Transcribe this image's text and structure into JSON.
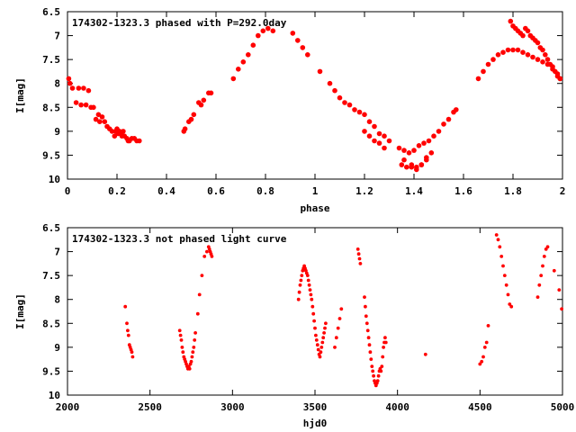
{
  "chart_data": [
    {
      "type": "scatter",
      "title": "174302-1323.3 phased with P=292.0day",
      "xlabel": "phase",
      "ylabel": "I[mag]",
      "xlim": [
        0,
        2
      ],
      "ylim": [
        6.5,
        10
      ],
      "y_inverted": true,
      "grid": false,
      "marker_color": "#ff0000",
      "marker": "filled-circle",
      "xticks": [
        0,
        0.2,
        0.4,
        0.6,
        0.8,
        1,
        1.2,
        1.4,
        1.6,
        1.8,
        2
      ],
      "xtick_labels": [
        "0",
        "0.2",
        "0.4",
        "0.6",
        "0.8",
        "1",
        "1.2",
        "1.4",
        "1.6",
        "1.8",
        "2"
      ],
      "yticks": [
        6.5,
        7,
        7.5,
        8,
        8.5,
        9,
        9.5,
        10
      ],
      "ytick_labels": [
        "6.5",
        "7",
        "7.5",
        "8",
        "8.5",
        "9",
        "9.5",
        "10"
      ],
      "series": [
        {
          "x": [
            0.005,
            0.01,
            0.02,
            0.035,
            0.045,
            0.055,
            0.065,
            0.075,
            0.085,
            0.095,
            0.105,
            0.115,
            0.125,
            0.13,
            0.14,
            0.15,
            0.16,
            0.17,
            0.18,
            0.19,
            0.195,
            0.2,
            0.205,
            0.21,
            0.215,
            0.22,
            0.225,
            0.23,
            0.24,
            0.245,
            0.25,
            0.26,
            0.27,
            0.28,
            0.29,
            0.47,
            0.475,
            0.49,
            0.5,
            0.51,
            0.53,
            0.54,
            0.55,
            0.57,
            0.58,
            0.67,
            0.69,
            0.71,
            0.73,
            0.75,
            0.77,
            0.79,
            0.81,
            0.83,
            0.91,
            0.93,
            0.95,
            0.97,
            1.02,
            1.06,
            1.08,
            1.1,
            1.12,
            1.14,
            1.16,
            1.18,
            1.2,
            1.22,
            1.24,
            1.26,
            1.28,
            1.3,
            1.34,
            1.36,
            1.38,
            1.4,
            1.42,
            1.44,
            1.46,
            1.48,
            1.5,
            1.52,
            1.54,
            1.56,
            1.57,
            1.66,
            1.68,
            1.7,
            1.72,
            1.74,
            1.76,
            1.78,
            1.8,
            1.82,
            1.84,
            1.86,
            1.88,
            1.9,
            1.92,
            1.94,
            1.96,
            1.98,
            1.99,
            1.2,
            1.22,
            1.24,
            1.26,
            1.28,
            1.35,
            1.37,
            1.39,
            1.41,
            1.43,
            1.45,
            1.47,
            1.79,
            1.8,
            1.81,
            1.82,
            1.83,
            1.84,
            1.85,
            1.86,
            1.87,
            1.88,
            1.89,
            1.9,
            1.91,
            1.92,
            1.93,
            1.94,
            1.95,
            1.96,
            1.97,
            1.98,
            1.99,
            1.36,
            1.39,
            1.41,
            1.43,
            1.45
          ],
          "y": [
            7.9,
            8.0,
            8.1,
            8.4,
            8.1,
            8.45,
            8.1,
            8.45,
            8.15,
            8.5,
            8.5,
            8.75,
            8.65,
            8.8,
            8.7,
            8.8,
            8.9,
            8.95,
            9.0,
            9.1,
            9.0,
            8.95,
            9.05,
            9.0,
            9.05,
            9.1,
            9.0,
            9.1,
            9.15,
            9.2,
            9.2,
            9.15,
            9.15,
            9.2,
            9.2,
            9.0,
            8.95,
            8.8,
            8.75,
            8.65,
            8.4,
            8.45,
            8.35,
            8.2,
            8.2,
            7.9,
            7.7,
            7.55,
            7.4,
            7.2,
            7.0,
            6.9,
            6.85,
            6.9,
            6.95,
            7.1,
            7.25,
            7.4,
            7.75,
            8.0,
            8.15,
            8.3,
            8.4,
            8.45,
            8.55,
            8.6,
            8.65,
            8.8,
            8.9,
            9.05,
            9.1,
            9.2,
            9.35,
            9.4,
            9.45,
            9.4,
            9.3,
            9.25,
            9.2,
            9.1,
            9.0,
            8.85,
            8.75,
            8.6,
            8.55,
            7.9,
            7.75,
            7.6,
            7.5,
            7.4,
            7.35,
            7.3,
            7.3,
            7.3,
            7.35,
            7.4,
            7.45,
            7.5,
            7.55,
            7.6,
            7.65,
            7.8,
            7.9,
            9.0,
            9.1,
            9.2,
            9.25,
            9.35,
            9.7,
            9.75,
            9.75,
            9.8,
            9.7,
            9.55,
            9.45,
            6.7,
            6.8,
            6.85,
            6.9,
            6.95,
            7.0,
            6.85,
            6.9,
            7.0,
            7.05,
            7.1,
            7.15,
            7.25,
            7.3,
            7.4,
            7.5,
            7.6,
            7.7,
            7.75,
            7.85,
            7.9,
            9.6,
            9.7,
            9.75,
            9.7,
            9.6
          ]
        }
      ]
    },
    {
      "type": "scatter",
      "title": "174302-1323.3 not phased light curve",
      "xlabel": "hjd0",
      "ylabel": "I[mag]",
      "xlim": [
        2000,
        5000
      ],
      "ylim": [
        6.5,
        10
      ],
      "y_inverted": true,
      "grid": false,
      "marker_color": "#ff0000",
      "marker": "filled-circle",
      "xticks": [
        2000,
        2500,
        3000,
        3500,
        4000,
        4500,
        5000
      ],
      "xtick_labels": [
        "2000",
        "2500",
        "3000",
        "3500",
        "4000",
        "4500",
        "5000"
      ],
      "yticks": [
        6.5,
        7,
        7.5,
        8,
        8.5,
        9,
        9.5,
        10
      ],
      "ytick_labels": [
        "6.5",
        "7",
        "7.5",
        "8",
        "8.5",
        "9",
        "9.5",
        "10"
      ],
      "series": [
        {
          "x": [
            2350,
            2360,
            2365,
            2370,
            2375,
            2380,
            2385,
            2390,
            2395,
            2680,
            2685,
            2690,
            2695,
            2700,
            2705,
            2710,
            2715,
            2720,
            2725,
            2730,
            2735,
            2740,
            2745,
            2750,
            2755,
            2760,
            2765,
            2770,
            2775,
            2790,
            2800,
            2815,
            2830,
            2845,
            2855,
            2860,
            2865,
            2870,
            2875,
            3400,
            3405,
            3410,
            3415,
            3420,
            3425,
            3430,
            3435,
            3440,
            3445,
            3450,
            3455,
            3460,
            3465,
            3470,
            3475,
            3480,
            3485,
            3490,
            3495,
            3500,
            3505,
            3510,
            3515,
            3520,
            3525,
            3530,
            3535,
            3540,
            3545,
            3550,
            3555,
            3560,
            3565,
            3620,
            3630,
            3640,
            3650,
            3660,
            3760,
            3765,
            3770,
            3775,
            3800,
            3805,
            3810,
            3815,
            3820,
            3825,
            3830,
            3835,
            3840,
            3845,
            3850,
            3855,
            3860,
            3865,
            3870,
            3875,
            3880,
            3885,
            3890,
            3895,
            3900,
            3905,
            3910,
            3915,
            3920,
            3925,
            3930,
            4170,
            4500,
            4510,
            4520,
            4530,
            4540,
            4550,
            4600,
            4610,
            4620,
            4630,
            4640,
            4650,
            4660,
            4670,
            4680,
            4690,
            4850,
            4860,
            4870,
            4880,
            4890,
            4900,
            4910,
            4950,
            4980,
            4995
          ],
          "y": [
            8.15,
            8.5,
            8.65,
            8.75,
            8.95,
            9.0,
            9.05,
            9.1,
            9.2,
            8.65,
            8.75,
            8.85,
            9.0,
            9.1,
            9.2,
            9.25,
            9.3,
            9.35,
            9.4,
            9.45,
            9.4,
            9.45,
            9.35,
            9.3,
            9.2,
            9.1,
            9.0,
            8.85,
            8.7,
            8.3,
            7.9,
            7.5,
            7.1,
            7.0,
            6.9,
            6.95,
            7.0,
            7.05,
            7.1,
            8.0,
            7.85,
            7.7,
            7.6,
            7.5,
            7.4,
            7.35,
            7.3,
            7.35,
            7.4,
            7.45,
            7.5,
            7.6,
            7.7,
            7.8,
            7.9,
            8.0,
            8.15,
            8.3,
            8.45,
            8.6,
            8.75,
            8.85,
            8.95,
            9.05,
            9.15,
            9.2,
            9.1,
            9.0,
            8.9,
            8.8,
            8.7,
            8.6,
            8.5,
            9.0,
            8.8,
            8.6,
            8.4,
            8.2,
            6.95,
            7.05,
            7.15,
            7.25,
            7.95,
            8.15,
            8.35,
            8.5,
            8.65,
            8.8,
            8.95,
            9.1,
            9.25,
            9.4,
            9.5,
            9.6,
            9.7,
            9.75,
            9.8,
            9.75,
            9.7,
            9.6,
            9.5,
            9.45,
            9.5,
            9.4,
            9.2,
            9.0,
            8.9,
            8.8,
            8.9,
            9.15,
            9.35,
            9.3,
            9.2,
            9.0,
            8.9,
            8.55,
            6.65,
            6.75,
            6.9,
            7.1,
            7.3,
            7.5,
            7.7,
            7.9,
            8.1,
            8.15,
            7.95,
            7.7,
            7.5,
            7.3,
            7.1,
            6.95,
            6.9,
            7.4,
            7.8,
            8.2
          ]
        }
      ]
    }
  ]
}
